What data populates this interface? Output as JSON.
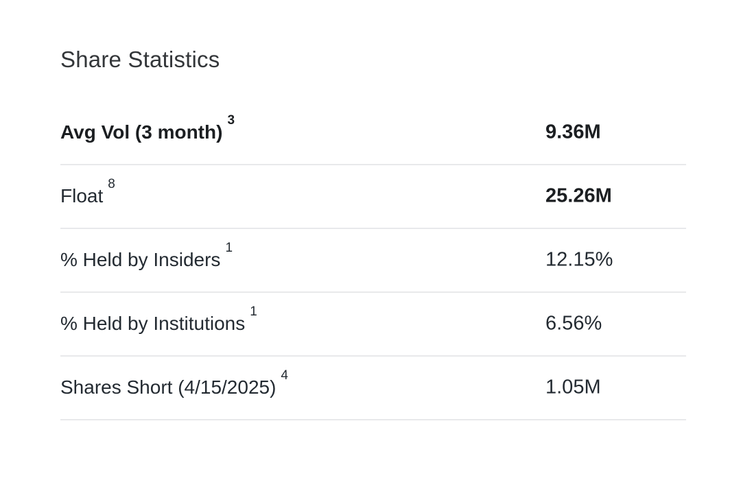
{
  "section": {
    "title": "Share Statistics",
    "rows": [
      {
        "label": "Avg Vol (3 month)",
        "footnote": "3",
        "value": "9.36M",
        "label_bold": true,
        "value_bold": true
      },
      {
        "label": "Float",
        "footnote": "8",
        "value": "25.26M",
        "label_bold": false,
        "value_bold": true
      },
      {
        "label": "% Held by Insiders",
        "footnote": "1",
        "value": "12.15%",
        "label_bold": false,
        "value_bold": false
      },
      {
        "label": "% Held by Institutions",
        "footnote": "1",
        "value": "6.56%",
        "label_bold": false,
        "value_bold": false
      },
      {
        "label": "Shares Short (4/15/2025)",
        "footnote": "4",
        "value": "1.05M",
        "label_bold": false,
        "value_bold": false
      }
    ],
    "colors": {
      "background": "#ffffff",
      "heading_text": "#333639",
      "row_text": "#232a31",
      "bold_text": "#1b1e21",
      "divider": "#e8e9eb"
    }
  }
}
